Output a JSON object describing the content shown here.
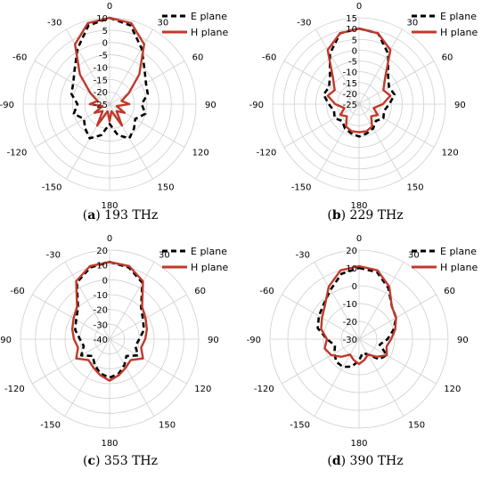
{
  "chart_data": [
    {
      "type": "polar-line",
      "panel_letter": "a",
      "caption": "193 THz",
      "radial_ticks": [
        "10",
        "5",
        "0",
        "-5",
        "-10",
        "-15",
        "-20",
        "-25"
      ],
      "rlim": [
        -25,
        10
      ],
      "angle_labels": [
        "0",
        "30",
        "60",
        "90",
        "120",
        "150",
        "180",
        "-150",
        "-120",
        "-90",
        "-60",
        "-30"
      ],
      "legend_placement": "top-right",
      "series": [
        {
          "name": "E plane",
          "style": "dashed",
          "color": "#000000",
          "angles_deg": [
            0,
            15,
            30,
            45,
            60,
            75,
            90,
            105,
            120,
            135,
            150,
            165,
            180,
            195,
            210,
            225,
            240,
            255,
            270,
            285,
            300,
            315,
            330,
            345
          ],
          "values": [
            10,
            8,
            1,
            -5,
            -8,
            -9,
            -12,
            -10,
            -13,
            -11,
            -9,
            -12,
            -17,
            -12,
            -9,
            -11,
            -13,
            -10,
            -12,
            -9,
            -8,
            -5,
            1,
            8
          ]
        },
        {
          "name": "H plane",
          "style": "solid",
          "color": "#c0392b",
          "angles_deg": [
            0,
            15,
            30,
            45,
            60,
            75,
            90,
            105,
            120,
            135,
            150,
            165,
            180,
            195,
            210,
            225,
            240,
            255,
            270,
            285,
            300,
            315,
            330,
            345
          ],
          "values": [
            10,
            9,
            3,
            -8,
            -16,
            -20,
            -17,
            -22,
            -18,
            -21,
            -15,
            -22,
            -18,
            -22,
            -15,
            -21,
            -18,
            -22,
            -17,
            -20,
            -16,
            -8,
            3,
            9
          ]
        }
      ]
    },
    {
      "type": "polar-line",
      "panel_letter": "b",
      "caption": "229 THz",
      "radial_ticks": [
        "15",
        "10",
        "5",
        "0",
        "-5",
        "-10",
        "-15",
        "-20",
        "-25"
      ],
      "rlim": [
        -25,
        15
      ],
      "angle_labels": [
        "0",
        "30",
        "60",
        "90",
        "120",
        "150",
        "180",
        "-150",
        "-120",
        "-90",
        "-60",
        "-30"
      ],
      "legend_placement": "top-right",
      "series": [
        {
          "name": "E plane",
          "style": "dashed",
          "color": "#000000",
          "angles_deg": [
            0,
            15,
            30,
            45,
            60,
            75,
            90,
            105,
            120,
            135,
            150,
            165,
            180,
            195,
            210,
            225,
            240,
            255,
            270,
            285,
            300,
            315,
            330,
            345
          ],
          "values": [
            10,
            9,
            2,
            -6,
            -9,
            -8,
            -11,
            -13,
            -12,
            -14,
            -12,
            -11,
            -10,
            -11,
            -12,
            -14,
            -12,
            -13,
            -11,
            -8,
            -9,
            -6,
            2,
            9
          ]
        },
        {
          "name": "H plane",
          "style": "solid",
          "color": "#c0392b",
          "angles_deg": [
            0,
            15,
            30,
            45,
            60,
            75,
            90,
            105,
            120,
            135,
            150,
            165,
            180,
            195,
            210,
            225,
            240,
            255,
            270,
            285,
            300,
            315,
            330,
            345
          ],
          "values": [
            10,
            9,
            4,
            -8,
            -12,
            -10,
            -14,
            -18,
            -15,
            -17,
            -13,
            -12,
            -12,
            -12,
            -13,
            -17,
            -15,
            -18,
            -14,
            -10,
            -12,
            -8,
            4,
            9
          ]
        }
      ]
    },
    {
      "type": "polar-line",
      "panel_letter": "c",
      "caption": "353 THz",
      "radial_ticks": [
        "20",
        "10",
        "0",
        "-10",
        "-20",
        "-30",
        "-40"
      ],
      "rlim": [
        -40,
        20
      ],
      "angle_labels": [
        "0",
        "30",
        "60",
        "90",
        "120",
        "150",
        "180",
        "-150",
        "-120",
        "-90",
        "-60",
        "-30"
      ],
      "legend_placement": "top-right",
      "series": [
        {
          "name": "E plane",
          "style": "dashed",
          "color": "#000000",
          "angles_deg": [
            0,
            15,
            30,
            45,
            60,
            75,
            90,
            105,
            120,
            135,
            150,
            165,
            180,
            195,
            210,
            225,
            240,
            255,
            270,
            285,
            300,
            315,
            330,
            345
          ],
          "values": [
            12,
            10,
            4,
            -10,
            -14,
            -16,
            -20,
            -22,
            -18,
            -24,
            -20,
            -16,
            -14,
            -16,
            -20,
            -24,
            -18,
            -22,
            -20,
            -16,
            -14,
            -10,
            4,
            10
          ]
        },
        {
          "name": "H plane",
          "style": "solid",
          "color": "#c0392b",
          "angles_deg": [
            0,
            15,
            30,
            45,
            60,
            75,
            90,
            105,
            120,
            135,
            150,
            165,
            180,
            195,
            210,
            225,
            240,
            255,
            270,
            285,
            300,
            315,
            330,
            345
          ],
          "values": [
            12,
            11,
            5,
            -9,
            -12,
            -14,
            -16,
            -18,
            -14,
            -20,
            -18,
            -15,
            -12,
            -15,
            -18,
            -20,
            -14,
            -18,
            -16,
            -14,
            -12,
            -9,
            5,
            11
          ]
        }
      ]
    },
    {
      "type": "polar-line",
      "panel_letter": "d",
      "caption": "390 THz",
      "radial_ticks": [
        "20",
        "10",
        "0",
        "-10",
        "-20",
        "-30"
      ],
      "rlim": [
        -30,
        20
      ],
      "angle_labels": [
        "0",
        "30",
        "60",
        "90",
        "120",
        "150",
        "180",
        "-150",
        "-120",
        "-90",
        "-60",
        "-30"
      ],
      "legend_placement": "top-right",
      "series": [
        {
          "name": "E plane",
          "style": "dashed",
          "color": "#000000",
          "angles_deg": [
            0,
            15,
            30,
            45,
            60,
            75,
            90,
            105,
            120,
            135,
            150,
            165,
            180,
            195,
            210,
            225,
            240,
            255,
            270,
            285,
            300,
            315,
            330,
            345
          ],
          "values": [
            10,
            9,
            3,
            -4,
            -6,
            -10,
            -14,
            -18,
            -12,
            -14,
            -20,
            -22,
            -18,
            -14,
            -12,
            -12,
            -14,
            -16,
            -12,
            -6,
            -4,
            -2,
            2,
            8
          ]
        },
        {
          "name": "H plane",
          "style": "solid",
          "color": "#c0392b",
          "angles_deg": [
            0,
            15,
            30,
            45,
            60,
            75,
            90,
            105,
            120,
            135,
            150,
            165,
            180,
            195,
            210,
            225,
            240,
            255,
            270,
            285,
            300,
            315,
            330,
            345
          ],
          "values": [
            11,
            10,
            4,
            -4,
            -6,
            -9,
            -12,
            -14,
            -12,
            -16,
            -20,
            -18,
            -16,
            -18,
            -20,
            -16,
            -12,
            -10,
            -12,
            -8,
            -6,
            -3,
            4,
            10
          ]
        }
      ]
    }
  ]
}
